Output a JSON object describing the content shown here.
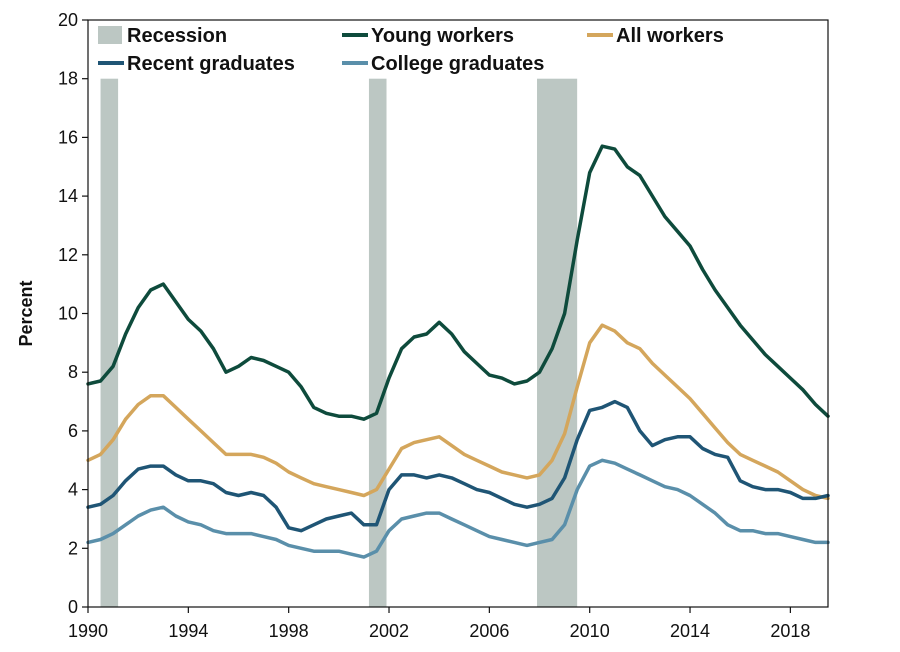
{
  "chart_data": {
    "type": "line",
    "title": "",
    "xlabel": "",
    "ylabel": "Percent",
    "xlim": [
      1990,
      2019.5
    ],
    "ylim": [
      0,
      20
    ],
    "x_ticks": [
      1990,
      1994,
      1998,
      2002,
      2006,
      2010,
      2014,
      2018
    ],
    "y_ticks": [
      0,
      2,
      4,
      6,
      8,
      10,
      12,
      14,
      16,
      18,
      20
    ],
    "grid": false,
    "legend_placement": "top",
    "recession": {
      "name": "Recession",
      "color": "#bcc7c3",
      "periods": [
        [
          1990.5,
          1991.2
        ],
        [
          2001.2,
          2001.9
        ],
        [
          2007.9,
          2009.5
        ]
      ]
    },
    "series": [
      {
        "name": "Young workers",
        "color": "#0e4b3c",
        "points": [
          [
            1990.0,
            7.6
          ],
          [
            1990.5,
            7.7
          ],
          [
            1991.0,
            8.2
          ],
          [
            1991.5,
            9.3
          ],
          [
            1992.0,
            10.2
          ],
          [
            1992.5,
            10.8
          ],
          [
            1993.0,
            11.0
          ],
          [
            1993.5,
            10.4
          ],
          [
            1994.0,
            9.8
          ],
          [
            1994.5,
            9.4
          ],
          [
            1995.0,
            8.8
          ],
          [
            1995.5,
            8.0
          ],
          [
            1996.0,
            8.2
          ],
          [
            1996.5,
            8.5
          ],
          [
            1997.0,
            8.4
          ],
          [
            1997.5,
            8.2
          ],
          [
            1998.0,
            8.0
          ],
          [
            1998.5,
            7.5
          ],
          [
            1999.0,
            6.8
          ],
          [
            1999.5,
            6.6
          ],
          [
            2000.0,
            6.5
          ],
          [
            2000.5,
            6.5
          ],
          [
            2001.0,
            6.4
          ],
          [
            2001.5,
            6.6
          ],
          [
            2002.0,
            7.8
          ],
          [
            2002.5,
            8.8
          ],
          [
            2003.0,
            9.2
          ],
          [
            2003.5,
            9.3
          ],
          [
            2004.0,
            9.7
          ],
          [
            2004.5,
            9.3
          ],
          [
            2005.0,
            8.7
          ],
          [
            2005.5,
            8.3
          ],
          [
            2006.0,
            7.9
          ],
          [
            2006.5,
            7.8
          ],
          [
            2007.0,
            7.6
          ],
          [
            2007.5,
            7.7
          ],
          [
            2008.0,
            8.0
          ],
          [
            2008.5,
            8.8
          ],
          [
            2009.0,
            10.0
          ],
          [
            2009.5,
            12.5
          ],
          [
            2010.0,
            14.8
          ],
          [
            2010.5,
            15.7
          ],
          [
            2011.0,
            15.6
          ],
          [
            2011.5,
            15.0
          ],
          [
            2012.0,
            14.7
          ],
          [
            2012.5,
            14.0
          ],
          [
            2013.0,
            13.3
          ],
          [
            2013.5,
            12.8
          ],
          [
            2014.0,
            12.3
          ],
          [
            2014.5,
            11.5
          ],
          [
            2015.0,
            10.8
          ],
          [
            2015.5,
            10.2
          ],
          [
            2016.0,
            9.6
          ],
          [
            2016.5,
            9.1
          ],
          [
            2017.0,
            8.6
          ],
          [
            2017.5,
            8.2
          ],
          [
            2018.0,
            7.8
          ],
          [
            2018.5,
            7.4
          ],
          [
            2019.0,
            6.9
          ],
          [
            2019.5,
            6.5
          ]
        ]
      },
      {
        "name": "All workers",
        "color": "#d4a65c",
        "points": [
          [
            1990.0,
            5.0
          ],
          [
            1990.5,
            5.2
          ],
          [
            1991.0,
            5.7
          ],
          [
            1991.5,
            6.4
          ],
          [
            1992.0,
            6.9
          ],
          [
            1992.5,
            7.2
          ],
          [
            1993.0,
            7.2
          ],
          [
            1993.5,
            6.8
          ],
          [
            1994.0,
            6.4
          ],
          [
            1994.5,
            6.0
          ],
          [
            1995.0,
            5.6
          ],
          [
            1995.5,
            5.2
          ],
          [
            1996.0,
            5.2
          ],
          [
            1996.5,
            5.2
          ],
          [
            1997.0,
            5.1
          ],
          [
            1997.5,
            4.9
          ],
          [
            1998.0,
            4.6
          ],
          [
            1998.5,
            4.4
          ],
          [
            1999.0,
            4.2
          ],
          [
            1999.5,
            4.1
          ],
          [
            2000.0,
            4.0
          ],
          [
            2000.5,
            3.9
          ],
          [
            2001.0,
            3.8
          ],
          [
            2001.5,
            4.0
          ],
          [
            2002.0,
            4.7
          ],
          [
            2002.5,
            5.4
          ],
          [
            2003.0,
            5.6
          ],
          [
            2003.5,
            5.7
          ],
          [
            2004.0,
            5.8
          ],
          [
            2004.5,
            5.5
          ],
          [
            2005.0,
            5.2
          ],
          [
            2005.5,
            5.0
          ],
          [
            2006.0,
            4.8
          ],
          [
            2006.5,
            4.6
          ],
          [
            2007.0,
            4.5
          ],
          [
            2007.5,
            4.4
          ],
          [
            2008.0,
            4.5
          ],
          [
            2008.5,
            5.0
          ],
          [
            2009.0,
            5.9
          ],
          [
            2009.5,
            7.5
          ],
          [
            2010.0,
            9.0
          ],
          [
            2010.5,
            9.6
          ],
          [
            2011.0,
            9.4
          ],
          [
            2011.5,
            9.0
          ],
          [
            2012.0,
            8.8
          ],
          [
            2012.5,
            8.3
          ],
          [
            2013.0,
            7.9
          ],
          [
            2013.5,
            7.5
          ],
          [
            2014.0,
            7.1
          ],
          [
            2014.5,
            6.6
          ],
          [
            2015.0,
            6.1
          ],
          [
            2015.5,
            5.6
          ],
          [
            2016.0,
            5.2
          ],
          [
            2016.5,
            5.0
          ],
          [
            2017.0,
            4.8
          ],
          [
            2017.5,
            4.6
          ],
          [
            2018.0,
            4.3
          ],
          [
            2018.5,
            4.0
          ],
          [
            2019.0,
            3.8
          ],
          [
            2019.5,
            3.7
          ]
        ]
      },
      {
        "name": "Recent graduates",
        "color": "#1f5575",
        "points": [
          [
            1990.0,
            3.4
          ],
          [
            1990.5,
            3.5
          ],
          [
            1991.0,
            3.8
          ],
          [
            1991.5,
            4.3
          ],
          [
            1992.0,
            4.7
          ],
          [
            1992.5,
            4.8
          ],
          [
            1993.0,
            4.8
          ],
          [
            1993.5,
            4.5
          ],
          [
            1994.0,
            4.3
          ],
          [
            1994.5,
            4.3
          ],
          [
            1995.0,
            4.2
          ],
          [
            1995.5,
            3.9
          ],
          [
            1996.0,
            3.8
          ],
          [
            1996.5,
            3.9
          ],
          [
            1997.0,
            3.8
          ],
          [
            1997.5,
            3.4
          ],
          [
            1998.0,
            2.7
          ],
          [
            1998.5,
            2.6
          ],
          [
            1999.0,
            2.8
          ],
          [
            1999.5,
            3.0
          ],
          [
            2000.0,
            3.1
          ],
          [
            2000.5,
            3.2
          ],
          [
            2001.0,
            2.8
          ],
          [
            2001.5,
            2.8
          ],
          [
            2002.0,
            4.0
          ],
          [
            2002.5,
            4.5
          ],
          [
            2003.0,
            4.5
          ],
          [
            2003.5,
            4.4
          ],
          [
            2004.0,
            4.5
          ],
          [
            2004.5,
            4.4
          ],
          [
            2005.0,
            4.2
          ],
          [
            2005.5,
            4.0
          ],
          [
            2006.0,
            3.9
          ],
          [
            2006.5,
            3.7
          ],
          [
            2007.0,
            3.5
          ],
          [
            2007.5,
            3.4
          ],
          [
            2008.0,
            3.5
          ],
          [
            2008.5,
            3.7
          ],
          [
            2009.0,
            4.4
          ],
          [
            2009.5,
            5.7
          ],
          [
            2010.0,
            6.7
          ],
          [
            2010.5,
            6.8
          ],
          [
            2011.0,
            7.0
          ],
          [
            2011.5,
            6.8
          ],
          [
            2012.0,
            6.0
          ],
          [
            2012.5,
            5.5
          ],
          [
            2013.0,
            5.7
          ],
          [
            2013.5,
            5.8
          ],
          [
            2014.0,
            5.8
          ],
          [
            2014.5,
            5.4
          ],
          [
            2015.0,
            5.2
          ],
          [
            2015.5,
            5.1
          ],
          [
            2016.0,
            4.3
          ],
          [
            2016.5,
            4.1
          ],
          [
            2017.0,
            4.0
          ],
          [
            2017.5,
            4.0
          ],
          [
            2018.0,
            3.9
          ],
          [
            2018.5,
            3.7
          ],
          [
            2019.0,
            3.7
          ],
          [
            2019.5,
            3.8
          ]
        ]
      },
      {
        "name": "College graduates",
        "color": "#5a8faa",
        "points": [
          [
            1990.0,
            2.2
          ],
          [
            1990.5,
            2.3
          ],
          [
            1991.0,
            2.5
          ],
          [
            1991.5,
            2.8
          ],
          [
            1992.0,
            3.1
          ],
          [
            1992.5,
            3.3
          ],
          [
            1993.0,
            3.4
          ],
          [
            1993.5,
            3.1
          ],
          [
            1994.0,
            2.9
          ],
          [
            1994.5,
            2.8
          ],
          [
            1995.0,
            2.6
          ],
          [
            1995.5,
            2.5
          ],
          [
            1996.0,
            2.5
          ],
          [
            1996.5,
            2.5
          ],
          [
            1997.0,
            2.4
          ],
          [
            1997.5,
            2.3
          ],
          [
            1998.0,
            2.1
          ],
          [
            1998.5,
            2.0
          ],
          [
            1999.0,
            1.9
          ],
          [
            1999.5,
            1.9
          ],
          [
            2000.0,
            1.9
          ],
          [
            2000.5,
            1.8
          ],
          [
            2001.0,
            1.7
          ],
          [
            2001.5,
            1.9
          ],
          [
            2002.0,
            2.6
          ],
          [
            2002.5,
            3.0
          ],
          [
            2003.0,
            3.1
          ],
          [
            2003.5,
            3.2
          ],
          [
            2004.0,
            3.2
          ],
          [
            2004.5,
            3.0
          ],
          [
            2005.0,
            2.8
          ],
          [
            2005.5,
            2.6
          ],
          [
            2006.0,
            2.4
          ],
          [
            2006.5,
            2.3
          ],
          [
            2007.0,
            2.2
          ],
          [
            2007.5,
            2.1
          ],
          [
            2008.0,
            2.2
          ],
          [
            2008.5,
            2.3
          ],
          [
            2009.0,
            2.8
          ],
          [
            2009.5,
            4.0
          ],
          [
            2010.0,
            4.8
          ],
          [
            2010.5,
            5.0
          ],
          [
            2011.0,
            4.9
          ],
          [
            2011.5,
            4.7
          ],
          [
            2012.0,
            4.5
          ],
          [
            2012.5,
            4.3
          ],
          [
            2013.0,
            4.1
          ],
          [
            2013.5,
            4.0
          ],
          [
            2014.0,
            3.8
          ],
          [
            2014.5,
            3.5
          ],
          [
            2015.0,
            3.2
          ],
          [
            2015.5,
            2.8
          ],
          [
            2016.0,
            2.6
          ],
          [
            2016.5,
            2.6
          ],
          [
            2017.0,
            2.5
          ],
          [
            2017.5,
            2.5
          ],
          [
            2018.0,
            2.4
          ],
          [
            2018.5,
            2.3
          ],
          [
            2019.0,
            2.2
          ],
          [
            2019.5,
            2.2
          ]
        ]
      }
    ],
    "legend": [
      "Recession",
      "Young workers",
      "All workers",
      "Recent graduates",
      "College graduates"
    ]
  }
}
